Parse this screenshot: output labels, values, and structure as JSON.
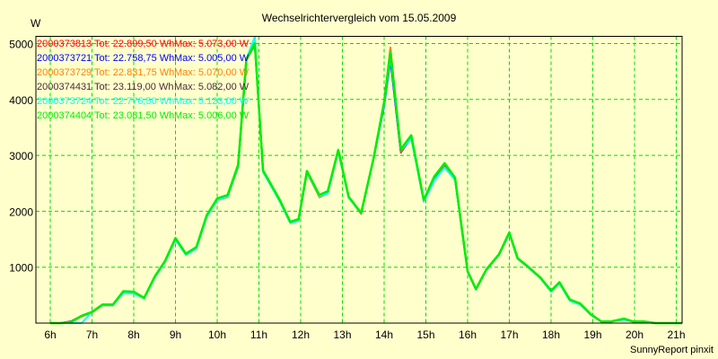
{
  "chart_data": {
    "type": "line",
    "title": "Wechselrichtervergleich vom 15.05.2009",
    "ylabel": "W",
    "xlabel": "",
    "footer": "SunnyReport pinxit",
    "ylim": [
      0,
      5150
    ],
    "xlim_hours": [
      5.66,
      21.14
    ],
    "yticks": [
      1000,
      2000,
      3000,
      4000,
      5000
    ],
    "ytick_labels": [
      "1000",
      "2000",
      "3000",
      "4000",
      "5000"
    ],
    "xticks": [
      6,
      7,
      8,
      9,
      10,
      11,
      12,
      13,
      14,
      15,
      16,
      17,
      18,
      19,
      20,
      21
    ],
    "xtick_labels": [
      "6h",
      "7h",
      "8h",
      "9h",
      "10h",
      "11h",
      "12h",
      "13h",
      "14h",
      "15h",
      "16h",
      "17h",
      "18h",
      "19h",
      "20h",
      "21h"
    ],
    "grid": true,
    "legend_position": "top-left",
    "x_hours": [
      6.0,
      6.25,
      6.5,
      6.75,
      7.0,
      7.25,
      7.5,
      7.75,
      8.0,
      8.25,
      8.5,
      8.75,
      9.0,
      9.25,
      9.5,
      9.75,
      10.0,
      10.25,
      10.5,
      10.7,
      10.9,
      11.1,
      11.5,
      11.75,
      11.95,
      12.15,
      12.45,
      12.65,
      12.9,
      13.15,
      13.45,
      13.75,
      14.0,
      14.15,
      14.4,
      14.65,
      14.95,
      15.2,
      15.45,
      15.7,
      16.0,
      16.2,
      16.45,
      16.75,
      17.0,
      17.2,
      17.45,
      17.75,
      18.0,
      18.2,
      18.45,
      18.7,
      18.95,
      19.2,
      19.45,
      19.75,
      19.95,
      20.2,
      20.5,
      20.75,
      21.0,
      21.14
    ],
    "series": [
      {
        "name": "2000373813",
        "total": "Tot: 22.899,50 Wh",
        "max": "Max: 5.073,00 W",
        "color": "#ff0000",
        "values": [
          0,
          0,
          20,
          120,
          190,
          320,
          320,
          560,
          550,
          450,
          820,
          1100,
          1510,
          1230,
          1350,
          1920,
          2210,
          2260,
          2800,
          4700,
          5000,
          2720,
          2180,
          1800,
          1840,
          2700,
          2260,
          2330,
          3090,
          2250,
          1960,
          2950,
          3950,
          4900,
          3060,
          3330,
          2180,
          2600,
          2830,
          2580,
          920,
          600,
          950,
          1220,
          1600,
          1150,
          1000,
          800,
          570,
          720,
          410,
          340,
          150,
          30,
          30,
          70,
          30,
          30,
          0,
          0,
          0,
          0
        ]
      },
      {
        "name": "2000373721",
        "total": "Tot: 22.758,75 Wh",
        "max": "Max: 5.005,00 W",
        "color": "#0000ff",
        "values": [
          0,
          0,
          30,
          130,
          200,
          320,
          320,
          560,
          550,
          450,
          820,
          1100,
          1500,
          1230,
          1340,
          1910,
          2210,
          2260,
          2790,
          4700,
          4980,
          2720,
          2180,
          1800,
          1840,
          2700,
          2260,
          2330,
          3080,
          2250,
          1960,
          2950,
          3880,
          4700,
          3050,
          3320,
          2180,
          2590,
          2820,
          2580,
          920,
          600,
          950,
          1220,
          1600,
          1150,
          1000,
          800,
          570,
          720,
          410,
          340,
          150,
          30,
          30,
          70,
          30,
          30,
          0,
          0,
          0,
          0
        ]
      },
      {
        "name": "2000373729",
        "total": "Tot: 22.831,75 Wh",
        "max": "Max: 5.070,00 W",
        "color": "#ff8000",
        "values": [
          0,
          0,
          20,
          120,
          190,
          320,
          320,
          560,
          550,
          450,
          820,
          1100,
          1510,
          1230,
          1350,
          1920,
          2200,
          2250,
          2790,
          4700,
          5000,
          2720,
          2180,
          1800,
          1830,
          2700,
          2250,
          2320,
          3080,
          2250,
          1950,
          2950,
          3950,
          4930,
          3060,
          3330,
          2180,
          2600,
          2830,
          2580,
          920,
          600,
          950,
          1220,
          1600,
          1150,
          1000,
          800,
          570,
          720,
          410,
          340,
          150,
          30,
          30,
          70,
          30,
          30,
          0,
          0,
          0,
          0
        ]
      },
      {
        "name": "2000374431",
        "total": "Tot: 23.119,00 Wh",
        "max": "Max: 5.082,00 W",
        "color": "#4b2b3b",
        "values": [
          0,
          0,
          30,
          130,
          200,
          330,
          330,
          570,
          560,
          450,
          830,
          1110,
          1520,
          1240,
          1360,
          1930,
          2220,
          2280,
          2820,
          4720,
          5010,
          2730,
          2200,
          1810,
          1850,
          2720,
          2280,
          2350,
          3100,
          2260,
          1970,
          2960,
          3960,
          4850,
          3090,
          3350,
          2200,
          2610,
          2850,
          2600,
          930,
          610,
          960,
          1230,
          1620,
          1160,
          1010,
          810,
          580,
          730,
          420,
          350,
          160,
          30,
          30,
          80,
          30,
          30,
          0,
          0,
          0,
          0
        ]
      },
      {
        "name": "2000373724",
        "total": "Tot: 22.776,50 Wh",
        "max": "Max: 5.123,00 W",
        "color": "#00ffff",
        "values": [
          0,
          0,
          0,
          0,
          200,
          320,
          320,
          540,
          530,
          440,
          810,
          1090,
          1490,
          1220,
          1330,
          1900,
          2200,
          2260,
          2800,
          4720,
          5120,
          2700,
          2170,
          1790,
          1830,
          2700,
          2270,
          2320,
          3070,
          2240,
          1960,
          2940,
          3900,
          4750,
          3100,
          3300,
          2170,
          2550,
          2780,
          2560,
          920,
          600,
          950,
          1220,
          1600,
          1150,
          1000,
          800,
          560,
          710,
          400,
          330,
          150,
          30,
          30,
          60,
          30,
          30,
          0,
          0,
          0,
          0
        ]
      },
      {
        "name": "2000374404",
        "total": "Tot: 23.081,50 Wh",
        "max": "Max: 5.006,00 W",
        "color": "#00ee00",
        "values": [
          0,
          0,
          20,
          130,
          200,
          330,
          330,
          570,
          560,
          450,
          830,
          1110,
          1520,
          1240,
          1360,
          1930,
          2230,
          2290,
          2830,
          4720,
          5000,
          2730,
          2200,
          1810,
          1860,
          2720,
          2290,
          2360,
          3100,
          2260,
          1970,
          2960,
          3950,
          4850,
          3110,
          3360,
          2200,
          2620,
          2860,
          2600,
          930,
          610,
          960,
          1230,
          1620,
          1160,
          1010,
          810,
          580,
          730,
          420,
          350,
          160,
          30,
          30,
          80,
          30,
          30,
          0,
          0,
          0,
          0
        ]
      }
    ]
  }
}
